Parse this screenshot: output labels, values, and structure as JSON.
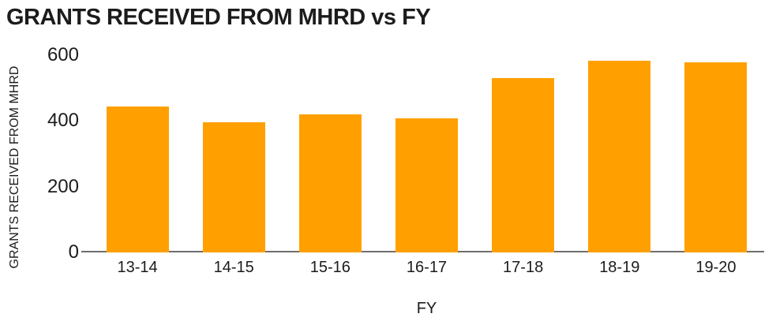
{
  "page": {
    "background": "#FFFFFF",
    "text_color": "#1C1C1C",
    "axis_line_color": "#6E6E6E",
    "accent_color": "#FFA000"
  },
  "chart_data": {
    "type": "bar",
    "title": "GRANTS RECEIVED FROM MHRD vs FY",
    "xlabel": "FY",
    "ylabel": "GRANTS RECEIVED FROM MHRD",
    "categories": [
      "13-14",
      "14-15",
      "15-16",
      "16-17",
      "17-18",
      "18-19",
      "19-20"
    ],
    "values": [
      445,
      396,
      421,
      409,
      531,
      583,
      578
    ],
    "ylim": [
      0,
      600
    ],
    "y_ticks": [
      0,
      200,
      400,
      600
    ],
    "grid": false,
    "legend_position": "none",
    "bar_color": "#FFA000"
  }
}
